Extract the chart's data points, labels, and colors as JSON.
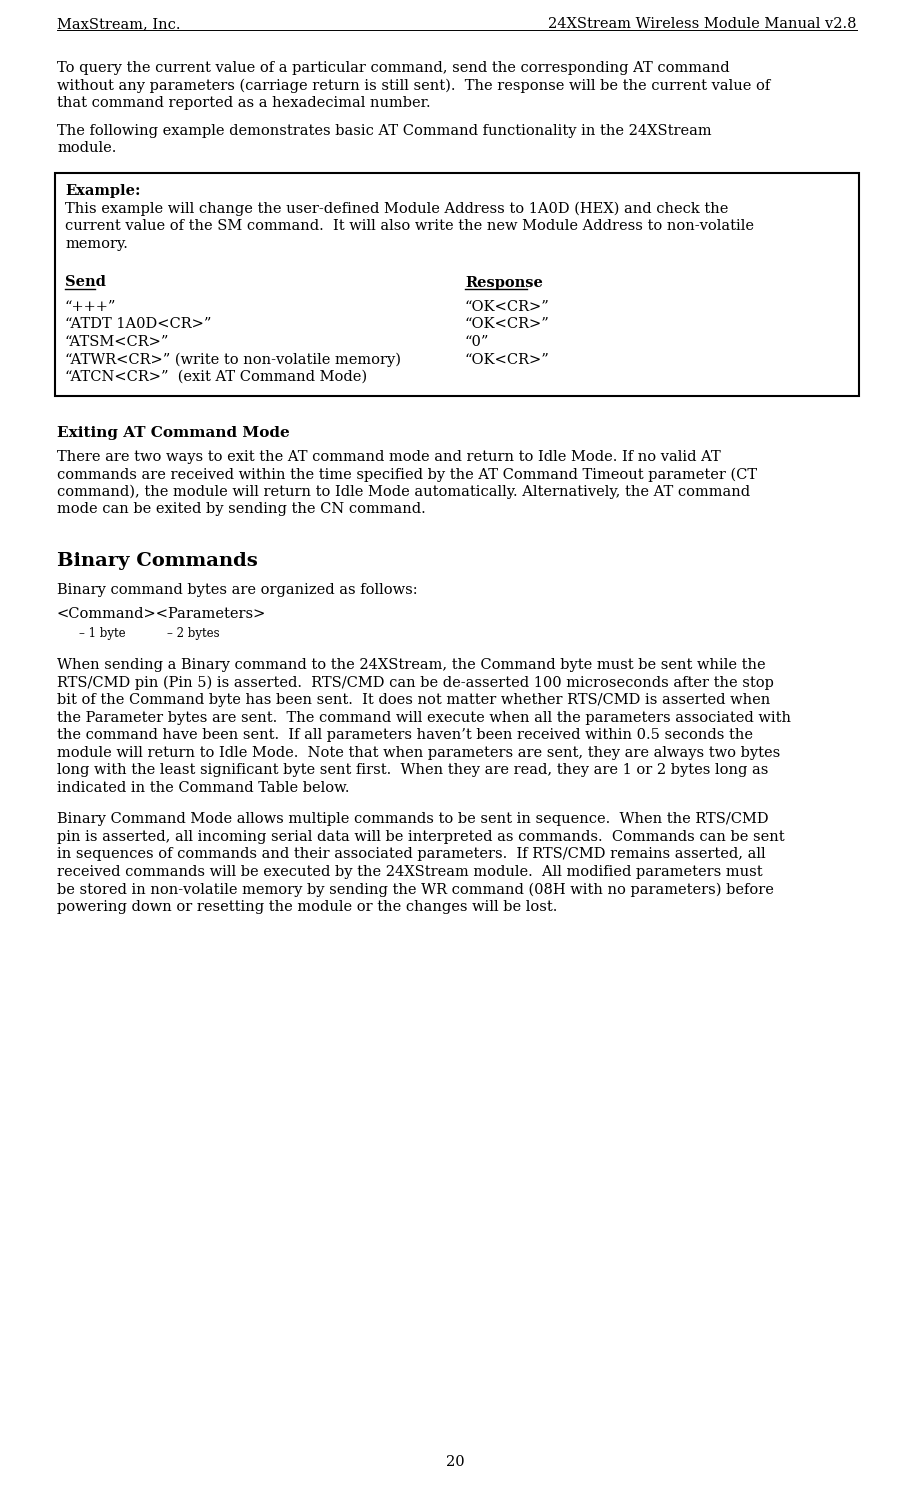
{
  "header_left": "MaxStream, Inc.",
  "header_right": "24XStream Wireless Module Manual v2.8",
  "page_number": "20",
  "background_color": "#ffffff",
  "text_color": "#000000",
  "body_font_size": 10.5,
  "small_font_size": 8.5,
  "bold_heading_size": 11.0,
  "binary_heading_size": 14.0,
  "para1_lines": [
    "To query the current value of a particular command, send the corresponding AT command",
    "without any parameters (carriage return is still sent).  The response will be the current value of",
    "that command reported as a hexadecimal number."
  ],
  "para2_lines": [
    "The following example demonstrates basic AT Command functionality in the 24XStream",
    "module."
  ],
  "example_heading": "Example:",
  "example_desc_lines": [
    "This example will change the user-defined Module Address to 1A0D (HEX) and check the",
    "current value of the SM command.  It will also write the new Module Address to non-volatile",
    "memory."
  ],
  "send_label": "Send",
  "response_label": "Response",
  "table_rows": [
    [
      "“+++”",
      "“OK<CR>”"
    ],
    [
      "“ATDT 1A0D<CR>”",
      "“OK<CR>”"
    ],
    [
      "“ATSM<CR>”",
      "“0”"
    ],
    [
      "“ATWR<CR>” (write to non-volatile memory)",
      "“OK<CR>”"
    ],
    [
      "“ATCN<CR>”  (exit AT Command Mode)",
      ""
    ]
  ],
  "section1_heading": "Exiting AT Command Mode",
  "section1_para_lines": [
    "There are two ways to exit the AT command mode and return to Idle Mode. If no valid AT",
    "commands are received within the time specified by the AT Command Timeout parameter (CT",
    "command), the module will return to Idle Mode automatically. Alternatively, the AT command",
    "mode can be exited by sending the CN command."
  ],
  "section2_heading": "Binary Commands",
  "section2_para1": "Binary command bytes are organized as follows:",
  "binary_cmd_line1": "<Command><Parameters>",
  "binary_cmd_line2_left": "– 1 byte",
  "binary_cmd_line2_right": "– 2 bytes",
  "section2_para2_lines": [
    "When sending a Binary command to the 24XStream, the Command byte must be sent while the",
    "RTS/CMD pin (Pin 5) is asserted.  RTS/CMD can be de-asserted 100 microseconds after the stop",
    "bit of the Command byte has been sent.  It does not matter whether RTS/CMD is asserted when",
    "the Parameter bytes are sent.  The command will execute when all the parameters associated with",
    "the command have been sent.  If all parameters haven’t been received within 0.5 seconds the",
    "module will return to Idle Mode.  Note that when parameters are sent, they are always two bytes",
    "long with the least significant byte sent first.  When they are read, they are 1 or 2 bytes long as",
    "indicated in the Command Table below."
  ],
  "section2_para3_lines": [
    "Binary Command Mode allows multiple commands to be sent in sequence.  When the RTS/CMD",
    "pin is asserted, all incoming serial data will be interpreted as commands.  Commands can be sent",
    "in sequences of commands and their associated parameters.  If RTS/CMD remains asserted, all",
    "received commands will be executed by the 24XStream module.  All modified parameters must",
    "be stored in non-volatile memory by sending the WR command (08H with no parameters) before",
    "powering down or resetting the module or the changes will be lost."
  ]
}
